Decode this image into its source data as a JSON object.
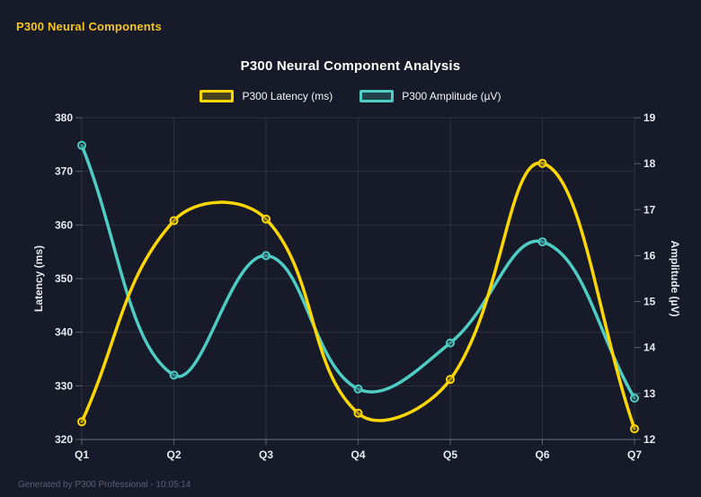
{
  "header": {
    "title": "P300 Neural Components"
  },
  "footer": {
    "text": "Generated by P300 Professional - 10:05:14"
  },
  "colors": {
    "background": "#171a28",
    "header_text": "#f5c518",
    "chart_title": "#ffffff",
    "tick_text": "#e8eaf0",
    "grid": "rgba(255,255,255,0.10)",
    "axis_line": "rgba(255,255,255,0.30)",
    "footer_text": "#596077",
    "latency_line": "#ffd700",
    "amplitude_line": "#4ecdc4"
  },
  "chart_data": {
    "type": "line",
    "title": "P300 Neural Component Analysis",
    "categories": [
      "Q1",
      "Q2",
      "Q3",
      "Q4",
      "Q5",
      "Q6",
      "Q7"
    ],
    "series": [
      {
        "name": "P300 Latency (ms)",
        "axis": "left",
        "color": "#ffd700",
        "values": [
          323.3,
          360.8,
          361.1,
          324.9,
          331.2,
          371.5,
          322.0
        ]
      },
      {
        "name": "P300 Amplitude (µV)",
        "axis": "right",
        "color": "#4ecdc4",
        "values": [
          18.4,
          13.4,
          16.0,
          13.1,
          14.1,
          16.3,
          12.9
        ]
      }
    ],
    "left_axis": {
      "label": "Latency (ms)",
      "min": 320,
      "max": 380,
      "step": 10
    },
    "right_axis": {
      "label": "Amplitude (µV)",
      "min": 12,
      "max": 19,
      "step": 1
    },
    "grid": true,
    "legend_position": "top",
    "smoothing": 0.4
  }
}
